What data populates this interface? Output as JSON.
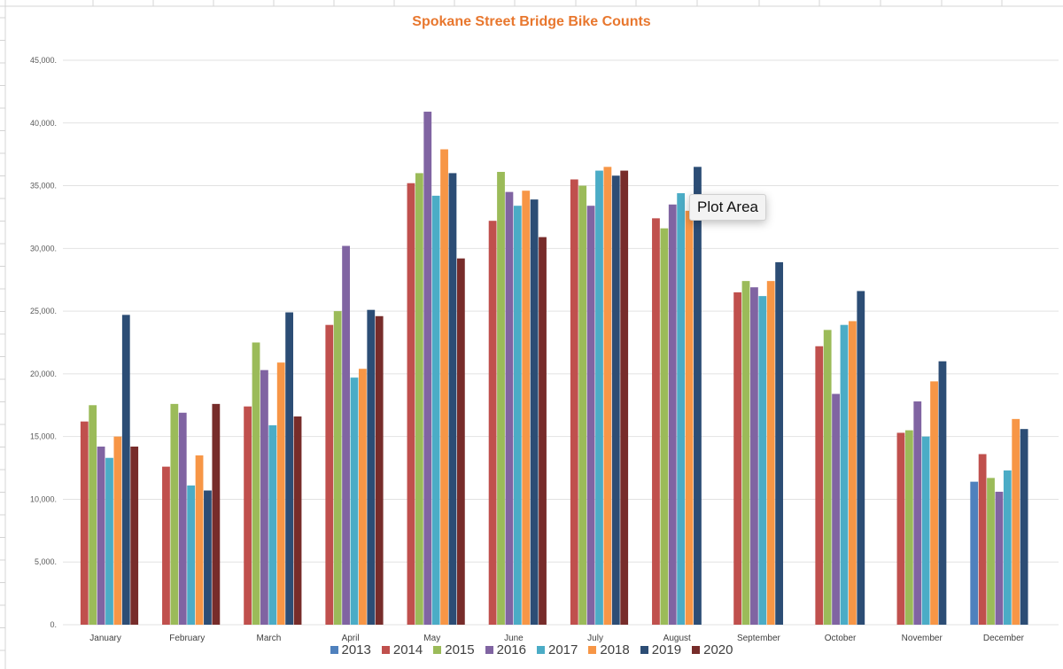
{
  "chart_data": {
    "type": "bar",
    "title": "Spokane Street Bridge Bike Counts",
    "xlabel": "",
    "ylabel": "",
    "ylim": [
      0,
      45000
    ],
    "yticks": [
      0,
      5000,
      10000,
      15000,
      20000,
      25000,
      30000,
      35000,
      40000,
      45000
    ],
    "ytick_labels": [
      "0.",
      "5,000.",
      "10,000.",
      "15,000.",
      "20,000.",
      "25,000.",
      "30,000.",
      "35,000.",
      "40,000.",
      "45,000."
    ],
    "grid": true,
    "legend_position": "bottom",
    "categories": [
      "January",
      "February",
      "March",
      "April",
      "May",
      "June",
      "July",
      "August",
      "September",
      "October",
      "November",
      "December"
    ],
    "series": [
      {
        "name": "2013",
        "color": "#4F81BD",
        "values": [
          null,
          null,
          null,
          null,
          null,
          null,
          null,
          null,
          null,
          null,
          null,
          11400
        ]
      },
      {
        "name": "2014",
        "color": "#C0504D",
        "values": [
          16200,
          12600,
          17400,
          23900,
          35200,
          32200,
          35500,
          32400,
          26500,
          22200,
          15300,
          13600
        ]
      },
      {
        "name": "2015",
        "color": "#9BBB59",
        "values": [
          17500,
          17600,
          22500,
          25000,
          36000,
          36100,
          35000,
          31600,
          27400,
          23500,
          15500,
          11700
        ]
      },
      {
        "name": "2016",
        "color": "#8064A2",
        "values": [
          14200,
          16900,
          20300,
          30200,
          40900,
          34500,
          33400,
          33500,
          26900,
          18400,
          17800,
          10600
        ]
      },
      {
        "name": "2017",
        "color": "#4BACC6",
        "values": [
          13300,
          11100,
          15900,
          19700,
          34200,
          33400,
          36200,
          34400,
          26200,
          23900,
          15000,
          12300
        ]
      },
      {
        "name": "2018",
        "color": "#F79646",
        "values": [
          15000,
          13500,
          20900,
          20400,
          37900,
          34600,
          36500,
          33000,
          27400,
          24200,
          19400,
          16400
        ]
      },
      {
        "name": "2019",
        "color": "#2C4D75",
        "values": [
          24700,
          10700,
          24900,
          25100,
          36000,
          33900,
          35800,
          36500,
          28900,
          26600,
          21000,
          15600
        ]
      },
      {
        "name": "2020",
        "color": "#772C2A",
        "values": [
          14200,
          17600,
          16600,
          24600,
          29200,
          30900,
          36200,
          null,
          null,
          null,
          null,
          null
        ]
      }
    ]
  },
  "tooltip": "Plot Area"
}
